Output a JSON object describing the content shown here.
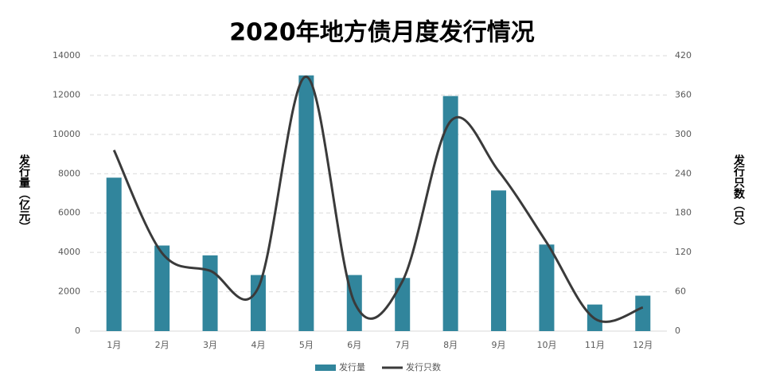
{
  "chart_data": {
    "type": "bar-line",
    "title": "2020年地方债月度发行情况",
    "y_label": "发行量（亿元）",
    "y2_label": "发行只数（只）",
    "categories": [
      "1月",
      "2月",
      "3月",
      "4月",
      "5月",
      "6月",
      "7月",
      "8月",
      "9月",
      "10月",
      "11月",
      "12月"
    ],
    "series": [
      {
        "name": "发行量",
        "type": "bar",
        "color": "#31859c",
        "values": [
          7800,
          4350,
          3850,
          2850,
          13000,
          2850,
          2700,
          11950,
          7150,
          4400,
          1350,
          1800
        ]
      },
      {
        "name": "发行只数",
        "type": "line",
        "axis": "y2",
        "smooth": true,
        "color": "#3a3a3a",
        "values": [
          276,
          119,
          92,
          66,
          388,
          44,
          76,
          320,
          244,
          135,
          19,
          36
        ]
      }
    ],
    "ylim": [
      0,
      14000
    ],
    "yticks": [
      0,
      2000,
      4000,
      6000,
      8000,
      10000,
      12000,
      14000
    ],
    "y2lim": [
      0,
      420
    ],
    "y2ticks": [
      0,
      60,
      120,
      180,
      240,
      300,
      360,
      420
    ],
    "grid": true,
    "legend": "bottom"
  }
}
